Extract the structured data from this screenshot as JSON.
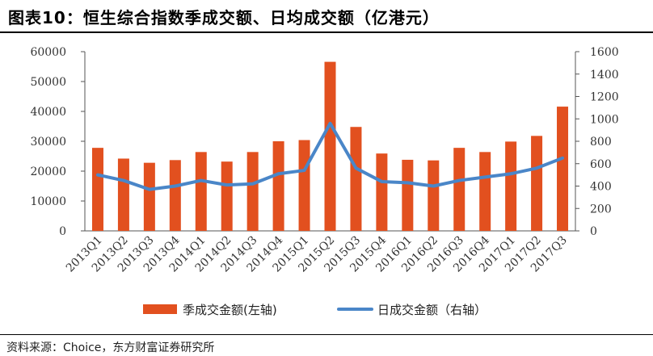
{
  "header": {
    "title": "图表10：恒生综合指数季成交额、日均成交额（亿港元）"
  },
  "footer": {
    "source": "资料来源：Choice，东方财富证券研究所"
  },
  "colors": {
    "bar": "#E2501F",
    "line": "#4A86C8",
    "axis": "#555555"
  },
  "chart_data": {
    "type": "bar+line",
    "categories": [
      "2013Q1",
      "2013Q2",
      "2013Q3",
      "2013Q4",
      "2014Q1",
      "2014Q2",
      "2014Q3",
      "2014Q4",
      "2015Q1",
      "2015Q2",
      "2015Q3",
      "2015Q4",
      "2016Q1",
      "2016Q2",
      "2016Q3",
      "2016Q4",
      "2017Q1",
      "2017Q2",
      "2017Q3"
    ],
    "series": [
      {
        "name": "季成交金额(左轴)",
        "type": "bar",
        "axis": "left",
        "values": [
          27800,
          24200,
          22800,
          23700,
          26400,
          23200,
          26400,
          30000,
          30400,
          56600,
          34800,
          25900,
          23800,
          23600,
          27800,
          26400,
          29900,
          31800,
          41600
        ]
      },
      {
        "name": "日成交金额（右轴）",
        "type": "line",
        "axis": "right",
        "values": [
          500,
          450,
          370,
          400,
          450,
          410,
          420,
          510,
          540,
          960,
          560,
          440,
          430,
          400,
          450,
          480,
          510,
          560,
          650
        ]
      }
    ],
    "y_left": {
      "min": 0,
      "max": 60000,
      "ticks": [
        "0",
        "10000",
        "20000",
        "30000",
        "40000",
        "50000",
        "60000"
      ]
    },
    "y_right": {
      "min": 0,
      "max": 1600,
      "ticks": [
        "0",
        "200",
        "400",
        "600",
        "800",
        "1000",
        "1200",
        "1400",
        "1600"
      ]
    },
    "legend_position": "bottom",
    "grid": false
  }
}
